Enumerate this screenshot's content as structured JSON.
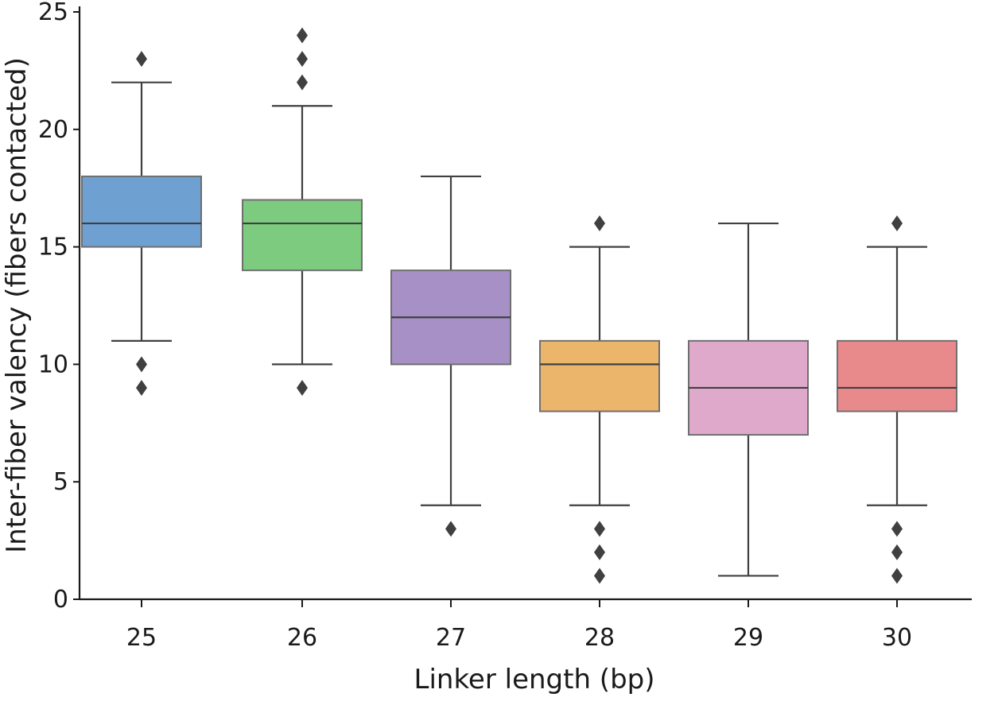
{
  "chart_data": {
    "type": "box",
    "title": "",
    "xlabel": "Linker length (bp)",
    "ylabel": "Inter-fiber valency (fibers contacted)",
    "ylim": [
      0,
      25
    ],
    "yticks": [
      0,
      5,
      10,
      15,
      20,
      25
    ],
    "grid": false,
    "categories": [
      "25",
      "26",
      "27",
      "28",
      "29",
      "30"
    ],
    "series": [
      {
        "name": "25",
        "color": "#6fa0d2",
        "whisker_low": 11,
        "q1": 15,
        "median": 16,
        "q3": 18,
        "whisker_high": 22,
        "outliers": [
          23,
          10,
          9
        ]
      },
      {
        "name": "26",
        "color": "#7dcb7f",
        "whisker_low": 10,
        "q1": 14,
        "median": 16,
        "q3": 17,
        "whisker_high": 21,
        "outliers": [
          24,
          23,
          22,
          9
        ]
      },
      {
        "name": "27",
        "color": "#a690c6",
        "whisker_low": 4,
        "q1": 10,
        "median": 12,
        "q3": 14,
        "whisker_high": 18,
        "outliers": [
          3
        ]
      },
      {
        "name": "28",
        "color": "#ecb56c",
        "whisker_low": 4,
        "q1": 8,
        "median": 10,
        "q3": 11,
        "whisker_high": 15,
        "outliers": [
          16,
          3,
          2,
          1
        ]
      },
      {
        "name": "29",
        "color": "#dfa9cc",
        "whisker_low": 1,
        "q1": 7,
        "median": 9,
        "q3": 11,
        "whisker_high": 16,
        "outliers": []
      },
      {
        "name": "30",
        "color": "#e88a8c",
        "whisker_low": 4,
        "q1": 8,
        "median": 9,
        "q3": 11,
        "whisker_high": 15,
        "outliers": [
          16,
          3,
          2,
          1
        ]
      }
    ]
  }
}
